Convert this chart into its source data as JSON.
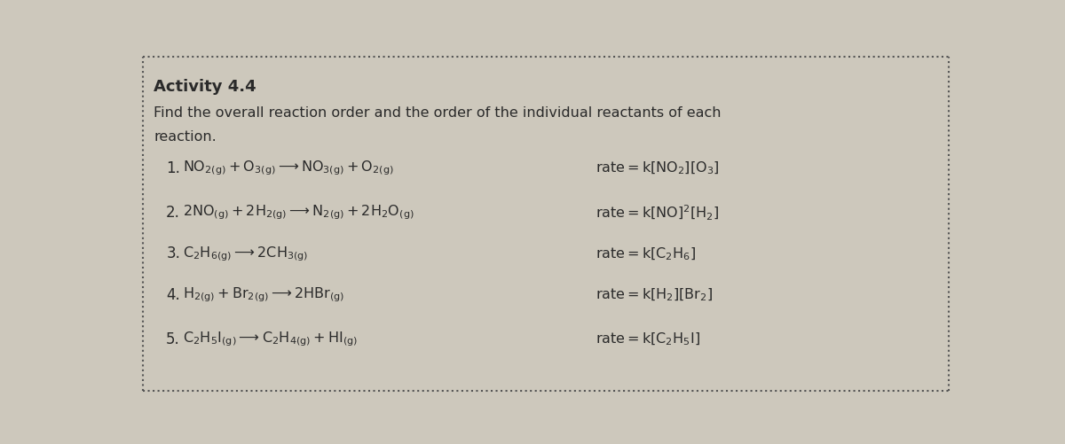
{
  "title": "Activity 4.4",
  "bg_color": "#cdc8bc",
  "text_color": "#2a2a2a",
  "figsize": [
    12,
    5.02
  ],
  "dpi": 100,
  "subtitle_line1": "Find the overall reaction order and the order of the individual reactants of each",
  "subtitle_line2": "reaction.",
  "reactions": [
    {
      "num": "1.",
      "eq": "$\\mathregular{NO_{2(g)} + O_{3(g)} \\longrightarrow NO_{3(g)} + O_{2(g)}}$",
      "rate": "$\\mathregular{rate = k[NO_2][O_3]}$"
    },
    {
      "num": "2.",
      "eq": "$\\mathregular{2NO_{(g)} + 2H_{2(g)} \\longrightarrow N_{2(g)} + 2H_2O_{(g)}}$",
      "rate": "$\\mathregular{rate = k[NO]^2[H_2]}$"
    },
    {
      "num": "3.",
      "eq": "$\\mathregular{C_2H_{6(g)} \\longrightarrow 2CH_{3(g)}}$",
      "rate": "$\\mathregular{rate = k[C_2H_6]}$"
    },
    {
      "num": "4.",
      "eq": "$\\mathregular{H_{2(g)} + Br_{2(g)} \\longrightarrow 2HBr_{(g)}}$",
      "rate": "$\\mathregular{rate = k[H_2][Br_2]}$"
    },
    {
      "num": "5.",
      "eq": "$\\mathregular{C_2H_5I_{(g)} \\longrightarrow C_2H_{4(g)} + HI_{(g)}}$",
      "rate": "$\\mathregular{rate = k[C_2H_5I]}$"
    }
  ]
}
